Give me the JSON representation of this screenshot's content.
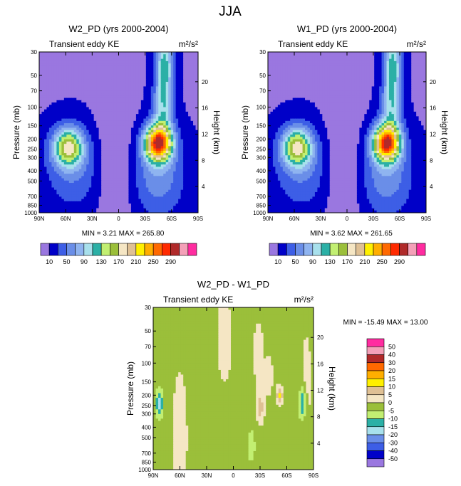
{
  "figure_title": "JJA",
  "colors": {
    "levels": [
      "#9a77e0",
      "#0000c8",
      "#3d5ee6",
      "#6a8ee8",
      "#8fb4f0",
      "#a8e0ec",
      "#2bb0a6",
      "#c2ef72",
      "#9bbf3a",
      "#f5e6c4",
      "#dfc094",
      "#fff000",
      "#ffae00",
      "#ff6900",
      "#ff2a00",
      "#b02a2a",
      "#f4a0b8",
      "#ff2ca0"
    ],
    "frame": "#000000"
  },
  "chart_data": [
    {
      "id": "panel-w2",
      "type": "contour",
      "title": "W2_PD (yrs 2000-2004)",
      "left_string": "Transient eddy KE",
      "units": "m²/s²",
      "xlabel": "",
      "ylabel": "Pressure (mb)",
      "right_axis_label": "Height (km)",
      "x_tick_labels": [
        "90N",
        "60N",
        "30N",
        "0",
        "30S",
        "60S",
        "90S"
      ],
      "y_tick_labels": [
        "30",
        "50",
        "70",
        "100",
        "150",
        "200",
        "250",
        "300",
        "400",
        "500",
        "700",
        "850",
        "1000"
      ],
      "height_tick_labels": [
        "4",
        "8",
        "12",
        "16",
        "20"
      ],
      "min_max_text": "MIN =   3.21  MAX = 265.80",
      "colorbar_labels": [
        "10",
        "50",
        "90",
        "130",
        "170",
        "210",
        "250",
        "290"
      ],
      "min": 3.21,
      "max": 265.8,
      "contour_levels": [
        10,
        30,
        50,
        70,
        90,
        110,
        130,
        150,
        170,
        190,
        210,
        230,
        250,
        270,
        290
      ]
    },
    {
      "id": "panel-w1",
      "type": "contour",
      "title": "W1_PD (yrs 2000-2004)",
      "left_string": "Transient eddy KE",
      "units": "m²/s²",
      "xlabel": "",
      "ylabel": "Pressure (mb)",
      "right_axis_label": "Height (km)",
      "x_tick_labels": [
        "90N",
        "60N",
        "30N",
        "0",
        "30S",
        "60S",
        "90S"
      ],
      "y_tick_labels": [
        "30",
        "50",
        "70",
        "100",
        "150",
        "200",
        "250",
        "300",
        "400",
        "500",
        "700",
        "850",
        "1000"
      ],
      "height_tick_labels": [
        "4",
        "8",
        "12",
        "16",
        "20"
      ],
      "min_max_text": "MIN =   3.62  MAX = 261.65",
      "colorbar_labels": [
        "10",
        "50",
        "90",
        "130",
        "170",
        "210",
        "250",
        "290"
      ],
      "min": 3.62,
      "max": 261.65,
      "contour_levels": [
        10,
        30,
        50,
        70,
        90,
        110,
        130,
        150,
        170,
        190,
        210,
        230,
        250,
        270,
        290
      ]
    },
    {
      "id": "panel-diff",
      "type": "contour",
      "title": "W2_PD - W1_PD",
      "left_string": "Transient eddy KE",
      "units": "m²/s²",
      "xlabel": "",
      "ylabel": "Pressure (mb)",
      "right_axis_label": "Height (km)",
      "x_tick_labels": [
        "90N",
        "60N",
        "30N",
        "0",
        "30S",
        "60S",
        "90S"
      ],
      "y_tick_labels": [
        "30",
        "50",
        "70",
        "100",
        "150",
        "200",
        "250",
        "300",
        "400",
        "500",
        "700",
        "850",
        "1000"
      ],
      "height_tick_labels": [
        "4",
        "8",
        "12",
        "16",
        "20"
      ],
      "min_max_text": "MIN = -15.49  MAX =  13.00",
      "colorbar_labels": [
        "50",
        "40",
        "30",
        "20",
        "15",
        "10",
        "5",
        "0",
        "-5",
        "-10",
        "-15",
        "-20",
        "-30",
        "-40",
        "-50"
      ],
      "min": -15.49,
      "max": 13.0,
      "contour_levels": [
        -50,
        -40,
        -30,
        -20,
        -15,
        -10,
        -5,
        0,
        5,
        10,
        15,
        20,
        30,
        40,
        50
      ]
    }
  ]
}
